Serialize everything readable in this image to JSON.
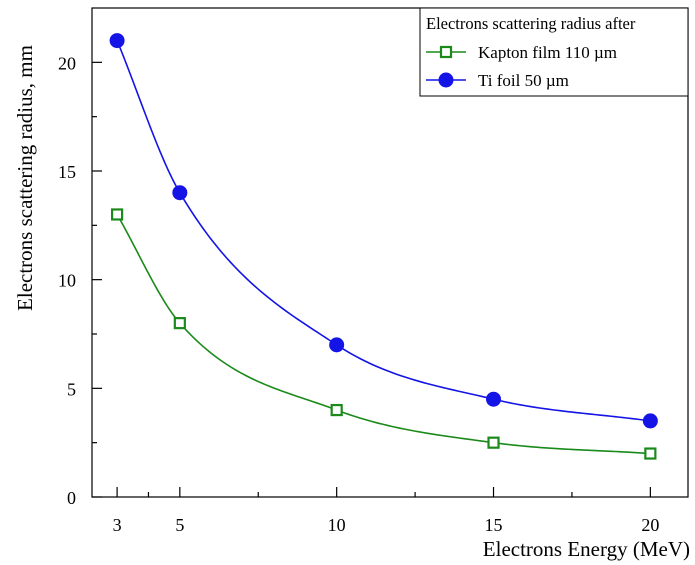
{
  "chart_data": {
    "type": "line",
    "title": "",
    "xlabel": "Electrons Energy (MeV)",
    "ylabel": "Electrons scattering radius, mm",
    "xlim": [
      2.2,
      21.2
    ],
    "ylim": [
      0,
      22.5
    ],
    "x_ticks": [
      3,
      5,
      10,
      15,
      20
    ],
    "x_minor_ticks": [
      4,
      7.5,
      12.5,
      17.5
    ],
    "y_ticks": [
      0,
      5,
      10,
      15,
      20
    ],
    "y_minor_ticks": [
      2.5,
      7.5,
      12.5,
      17.5
    ],
    "grid": false,
    "legend": {
      "title": "Electrons scattering radius after",
      "position": "top-right"
    },
    "series": [
      {
        "name": "Kapton film 110 µm",
        "color": "#1a8a1a",
        "marker": "open-square",
        "x": [
          3,
          5,
          10,
          15,
          20
        ],
        "y": [
          13,
          8,
          4,
          2.5,
          2
        ]
      },
      {
        "name": "Ti foil 50 µm",
        "color": "#1414e6",
        "marker": "filled-circle",
        "x": [
          3,
          5,
          10,
          15,
          20
        ],
        "y": [
          21,
          14,
          7,
          4.5,
          3.5
        ]
      }
    ]
  }
}
